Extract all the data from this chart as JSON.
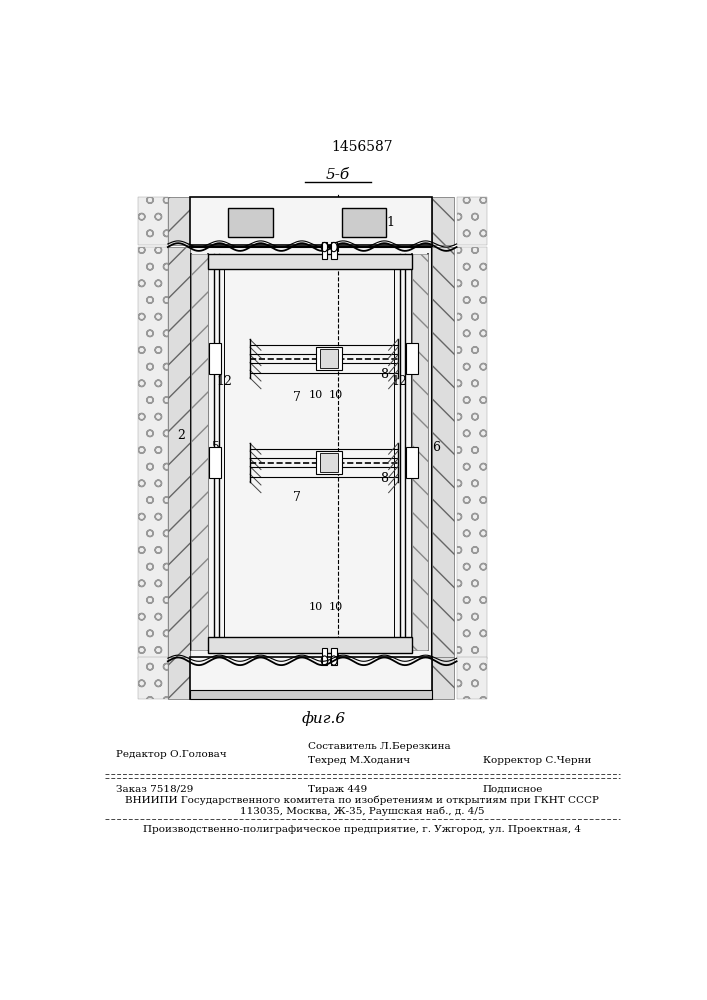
{
  "patent_number": "1456587",
  "section_label": "5-б",
  "fig_label": "фиг.6",
  "bg_color": "#ffffff",
  "line_color": "#000000",
  "footer": {
    "line1_left": "Редактор О.Головач",
    "line1_center_top": "Составитель Л.Березкина",
    "line1_center_bot": "Техред М.Ходанич",
    "line1_right": "Корректор С.Черни",
    "line2_left": "Заказ 7518/29",
    "line2_center": "Тираж 449",
    "line2_right": "Подписное",
    "line3": "ВНИИПИ Государственного комитета по изобретениям и открытиям при ГКНТ СССР",
    "line4": "113035, Москва, Ж-35, Раушская наб., д. 4/5",
    "line5": "Производственно-полиграфическое предприятие, г. Ужгород, ул. Проектная, 4"
  }
}
